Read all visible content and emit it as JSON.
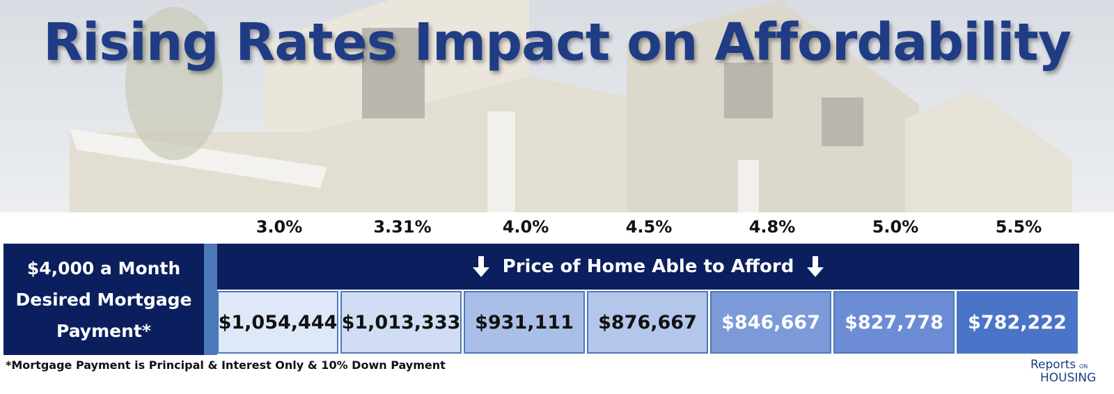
{
  "header": {
    "title": "Rising Rates Impact on Affordability"
  },
  "table": {
    "rates": [
      "3.0%",
      "3.31%",
      "4.0%",
      "4.5%",
      "4.8%",
      "5.0%",
      "5.5%"
    ],
    "row_label": "$4,000 a Month Desired Mortgage Payment*",
    "banner": "Price of Home Able to Afford",
    "prices": [
      "$1,054,444",
      "$1,013,333",
      "$931,111",
      "$876,667",
      "$846,667",
      "$827,778",
      "$782,222"
    ]
  },
  "footnote": "*Mortgage Payment is Principal & Interest Only & 10% Down Payment",
  "logo": {
    "brand": "Reports",
    "small": "ON",
    "word": "HOUSING"
  }
}
